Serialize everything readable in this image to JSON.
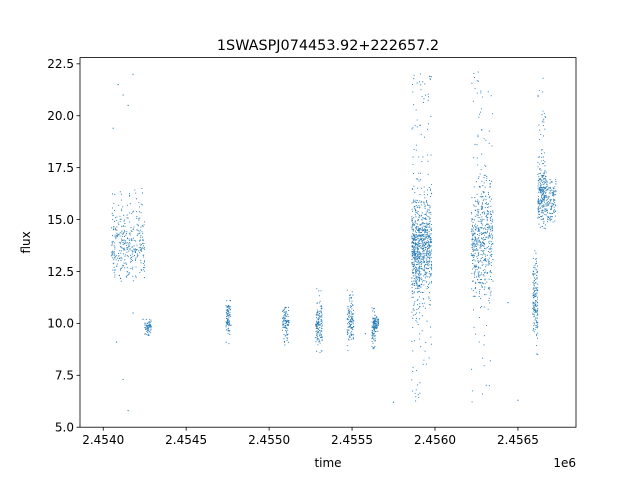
{
  "chart_data": {
    "type": "scatter",
    "title": "1SWASPJ074453.92+222657.2",
    "xlabel": "time",
    "ylabel": "flux",
    "x_offset_label": "1e6",
    "xlim": [
      2.45386,
      2.45685
    ],
    "ylim": [
      5.0,
      22.8
    ],
    "x_ticks": [
      {
        "value": 2.454,
        "label": "2.4540"
      },
      {
        "value": 2.4545,
        "label": "2.4545"
      },
      {
        "value": 2.455,
        "label": "2.4550"
      },
      {
        "value": 2.4555,
        "label": "2.4555"
      },
      {
        "value": 2.456,
        "label": "2.4560"
      },
      {
        "value": 2.4565,
        "label": "2.4565"
      }
    ],
    "y_ticks": [
      {
        "value": 5.0,
        "label": "5.0"
      },
      {
        "value": 7.5,
        "label": "7.5"
      },
      {
        "value": 10.0,
        "label": "10.0"
      },
      {
        "value": 12.5,
        "label": "12.5"
      },
      {
        "value": 15.0,
        "label": "15.0"
      },
      {
        "value": 17.5,
        "label": "17.5"
      },
      {
        "value": 20.0,
        "label": "20.0"
      },
      {
        "value": 22.5,
        "label": "22.5"
      }
    ],
    "grid": false,
    "marker_color": "#1f77b4",
    "series": [
      {
        "x": [
          2.45406,
          2.45409,
          2.45412,
          2.45415,
          2.45418,
          2.4542,
          2.45424,
          2.45428,
          2.45408,
          2.45412,
          2.45415,
          2.45418,
          2.45558,
          2.45575,
          2.45644,
          2.4565
        ],
        "y": [
          19.4,
          21.5,
          21.0,
          20.5,
          22.0,
          16.0,
          10.2,
          9.6,
          9.1,
          7.3,
          5.8,
          10.5,
          9.5,
          6.2,
          11.0,
          6.3
        ]
      }
    ],
    "clusters": [
      {
        "x_range": [
          2.45405,
          2.45425
        ],
        "y_min": 12.0,
        "y_max": 16.5,
        "y_center": 13.8,
        "spread": 0.8
      },
      {
        "x_range": [
          2.45425,
          2.45429
        ],
        "y_min": 9.4,
        "y_max": 10.2,
        "y_center": 9.8,
        "spread": 0.25
      },
      {
        "x_range": [
          2.45563,
          2.45566
        ],
        "y_min": 9.6,
        "y_max": 10.4,
        "y_center": 10.0,
        "spread": 0.2
      },
      {
        "x_range": [
          2.45474,
          2.45477
        ],
        "y_min": 8.8,
        "y_max": 11.2,
        "y_center": 10.3,
        "spread": 0.5
      },
      {
        "x_range": [
          2.45508,
          2.45512
        ],
        "y_min": 8.9,
        "y_max": 10.9,
        "y_center": 10.0,
        "spread": 0.4
      },
      {
        "x_range": [
          2.45528,
          2.45532
        ],
        "y_min": 8.5,
        "y_max": 11.8,
        "y_center": 10.0,
        "spread": 0.5
      },
      {
        "x_range": [
          2.45547,
          2.45551
        ],
        "y_min": 8.6,
        "y_max": 11.6,
        "y_center": 10.0,
        "spread": 0.5
      },
      {
        "x_range": [
          2.45562,
          2.45564
        ],
        "y_min": 8.7,
        "y_max": 10.9,
        "y_center": 9.7,
        "spread": 0.4
      },
      {
        "x_range": [
          2.45586,
          2.45591
        ],
        "y_min": 6.0,
        "y_max": 22.2,
        "y_center": 13.6,
        "spread": 1.2
      },
      {
        "x_range": [
          2.45591,
          2.45598
        ],
        "y_min": 8.0,
        "y_max": 22.1,
        "y_center": 13.8,
        "spread": 1.1
      },
      {
        "x_range": [
          2.45622,
          2.45635
        ],
        "y_min": 6.0,
        "y_max": 22.2,
        "y_center": 13.9,
        "spread": 1.3
      },
      {
        "x_range": [
          2.45659,
          2.45662
        ],
        "y_min": 8.5,
        "y_max": 13.5,
        "y_center": 11.2,
        "spread": 0.8
      },
      {
        "x_range": [
          2.45662,
          2.45667
        ],
        "y_min": 14.5,
        "y_max": 22.1,
        "y_center": 16.2,
        "spread": 0.8
      },
      {
        "x_range": [
          2.45667,
          2.45673
        ],
        "y_min": 14.6,
        "y_max": 17.0,
        "y_center": 15.8,
        "spread": 0.5
      }
    ]
  }
}
